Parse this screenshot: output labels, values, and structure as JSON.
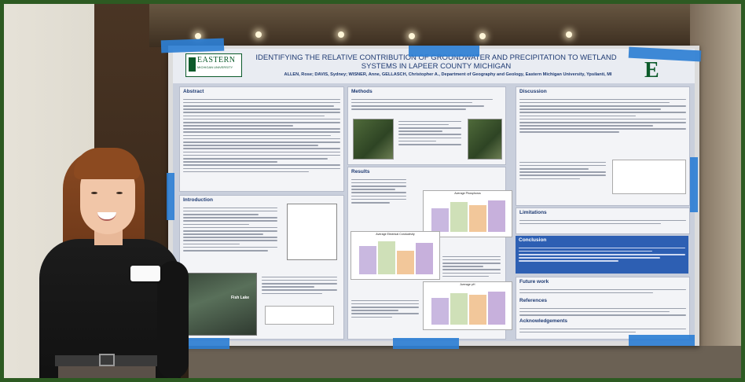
{
  "poster": {
    "title_line1": "IDENTIFYING THE RELATIVE CONTRIBUTION OF GROUNDWATER AND PRECIPITATION TO WETLAND",
    "title_line2": "SYSTEMS IN LAPEER COUNTY MICHIGAN",
    "authors": "ALLEN, Rose; DAVIS, Sydney; WISNER, Anne, GELLASCH, Christopher A., Department of Geography and Geology, Eastern Michigan University, Ypsilanti, MI",
    "logo_word": "EASTERN",
    "logo_sub": "MICHIGAN UNIVERSITY",
    "corner_letter": "E",
    "sections": {
      "abstract": "Abstract",
      "introduction": "Introduction",
      "methods": "Methods",
      "results": "Results",
      "discussion": "Discussion",
      "limitations": "Limitations",
      "conclusion": "Conclusion",
      "future_work": "Future work",
      "references": "References",
      "acknowledgements": "Acknowledgements"
    },
    "chart_titles": {
      "phosphorus": "Average Phosphorus",
      "conductivity": "Average Electrical Conductivity",
      "ph": "Average pH"
    },
    "map_label": "Fish Lake",
    "colors": {
      "title_blue": "#1e3a72",
      "emu_green": "#0b5a2a",
      "conclusion_blue": "#2d5fb3",
      "tape_blue": "#2e7fd4"
    }
  }
}
